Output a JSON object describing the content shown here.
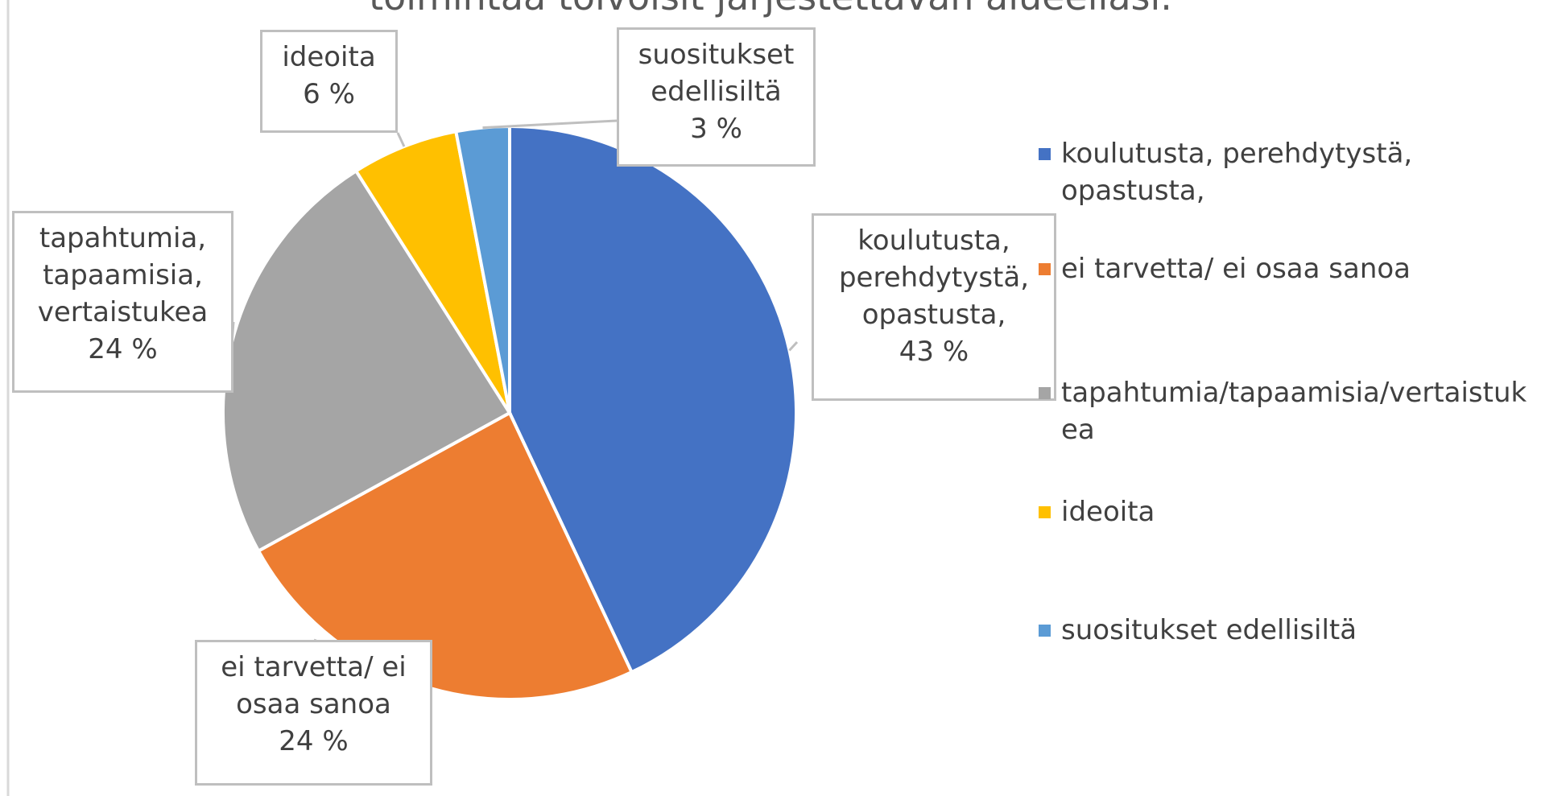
{
  "chart_data": {
    "type": "pie",
    "title": "toimintaa toivoisit järjestettävän alueellasi.",
    "categories": [
      "koulutusta, perehdytystä, opastusta,",
      "ei tarvetta/ ei osaa sanoa",
      "tapahtumia/tapaamisia/vertaistukea",
      "ideoita",
      "suositukset edellisiltä"
    ],
    "label_texts": [
      "koulutusta, perehdytystä, opastusta,",
      "ei tarvetta/ ei osaa sanoa",
      "tapahtumia, tapaamisia, vertaistukea",
      "ideoita",
      "suositukset edellisiltä"
    ],
    "values": [
      43,
      24,
      24,
      6,
      3
    ],
    "value_labels": [
      "43 %",
      "24 %",
      "24 %",
      "6 %",
      "3 %"
    ],
    "colors": [
      "#4472c4",
      "#ed7d31",
      "#a5a5a5",
      "#ffc000",
      "#5b9bd5"
    ],
    "legend": "right"
  }
}
